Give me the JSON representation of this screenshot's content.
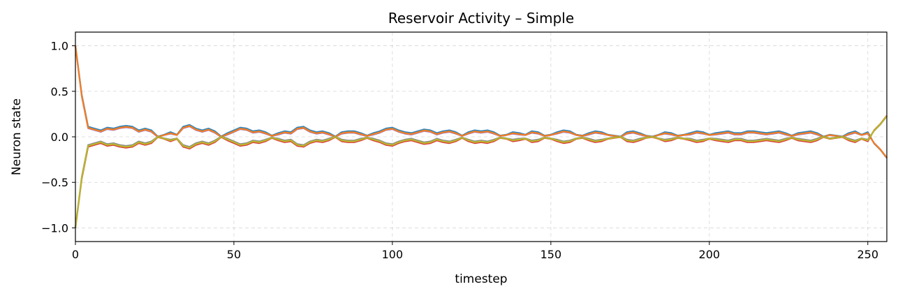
{
  "chart_data": {
    "type": "line",
    "title": "Reservoir Activity – Simple",
    "xlabel": "timestep",
    "ylabel": "Neuron state",
    "xlim": [
      0,
      256
    ],
    "ylim": [
      -1.15,
      1.15
    ],
    "grid": true,
    "legend": "none",
    "x_ticks": [
      0,
      50,
      100,
      150,
      200,
      250
    ],
    "x_tick_labels": [
      "0",
      "50",
      "100",
      "150",
      "200",
      "250"
    ],
    "y_ticks": [
      1.0,
      0.5,
      0.0,
      -0.5,
      -1.0
    ],
    "y_tick_labels": [
      "1.0",
      "0.5",
      "0.0",
      "−0.5",
      "−1.0"
    ],
    "x": [
      0,
      2,
      4,
      6,
      8,
      10,
      12,
      14,
      16,
      18,
      20,
      22,
      24,
      26,
      28,
      30,
      32,
      34,
      36,
      38,
      40,
      42,
      44,
      46,
      48,
      50,
      52,
      54,
      56,
      58,
      60,
      62,
      64,
      66,
      68,
      70,
      72,
      74,
      76,
      78,
      80,
      82,
      84,
      86,
      88,
      90,
      92,
      94,
      96,
      98,
      100,
      102,
      104,
      106,
      108,
      110,
      112,
      114,
      116,
      118,
      120,
      122,
      124,
      126,
      128,
      130,
      132,
      134,
      136,
      138,
      140,
      142,
      144,
      146,
      148,
      150,
      152,
      154,
      156,
      158,
      160,
      162,
      164,
      166,
      168,
      170,
      172,
      174,
      176,
      178,
      180,
      182,
      184,
      186,
      188,
      190,
      192,
      194,
      196,
      198,
      200,
      202,
      204,
      206,
      208,
      210,
      212,
      214,
      216,
      218,
      220,
      222,
      224,
      226,
      228,
      230,
      232,
      234,
      236,
      238,
      240,
      242,
      244,
      246,
      248,
      250,
      252,
      254,
      256
    ],
    "envelope": [
      1.0,
      0.45,
      0.1,
      0.08,
      0.06,
      0.09,
      0.08,
      0.1,
      0.11,
      0.1,
      0.06,
      0.08,
      0.06,
      0.0,
      0.02,
      0.04,
      0.02,
      0.1,
      0.12,
      0.08,
      0.06,
      0.08,
      0.05,
      0.0,
      0.03,
      0.06,
      0.09,
      0.08,
      0.05,
      0.06,
      0.04,
      0.01,
      0.03,
      0.05,
      0.04,
      0.09,
      0.1,
      0.06,
      0.04,
      0.05,
      0.03,
      0.0,
      0.04,
      0.05,
      0.05,
      0.03,
      0.01,
      0.03,
      0.05,
      0.08,
      0.09,
      0.06,
      0.04,
      0.03,
      0.05,
      0.07,
      0.06,
      0.03,
      0.05,
      0.06,
      0.04,
      0.01,
      0.04,
      0.06,
      0.05,
      0.06,
      0.04,
      0.01,
      0.02,
      0.04,
      0.03,
      0.02,
      0.05,
      0.04,
      0.01,
      0.02,
      0.04,
      0.06,
      0.05,
      0.02,
      0.01,
      0.03,
      0.05,
      0.04,
      0.02,
      0.01,
      0.0,
      0.04,
      0.05,
      0.03,
      0.01,
      0.0,
      0.02,
      0.04,
      0.03,
      0.01,
      0.02,
      0.03,
      0.05,
      0.04,
      0.02,
      0.03,
      0.04,
      0.05,
      0.03,
      0.03,
      0.05,
      0.05,
      0.04,
      0.03,
      0.04,
      0.05,
      0.03,
      0.01,
      0.03,
      0.04,
      0.05,
      0.03,
      0.0,
      0.02,
      0.01,
      0.0,
      0.03,
      0.05,
      0.02,
      0.04,
      0.08,
      0.15,
      0.24
    ],
    "series": [
      {
        "color": "#1f77b4",
        "sign": 1,
        "jitter": 0.012
      },
      {
        "color": "#9467bd",
        "sign": 1,
        "jitter": -0.006
      },
      {
        "color": "#ff7f0e",
        "sign": 1,
        "jitter": 0.0
      },
      {
        "color": "#d62728",
        "sign": -1,
        "jitter": 0.01
      },
      {
        "color": "#7f7f7f",
        "sign": -1,
        "jitter": -0.01
      },
      {
        "color": "#bcbd22",
        "sign": -1,
        "jitter": 0.0
      }
    ]
  }
}
